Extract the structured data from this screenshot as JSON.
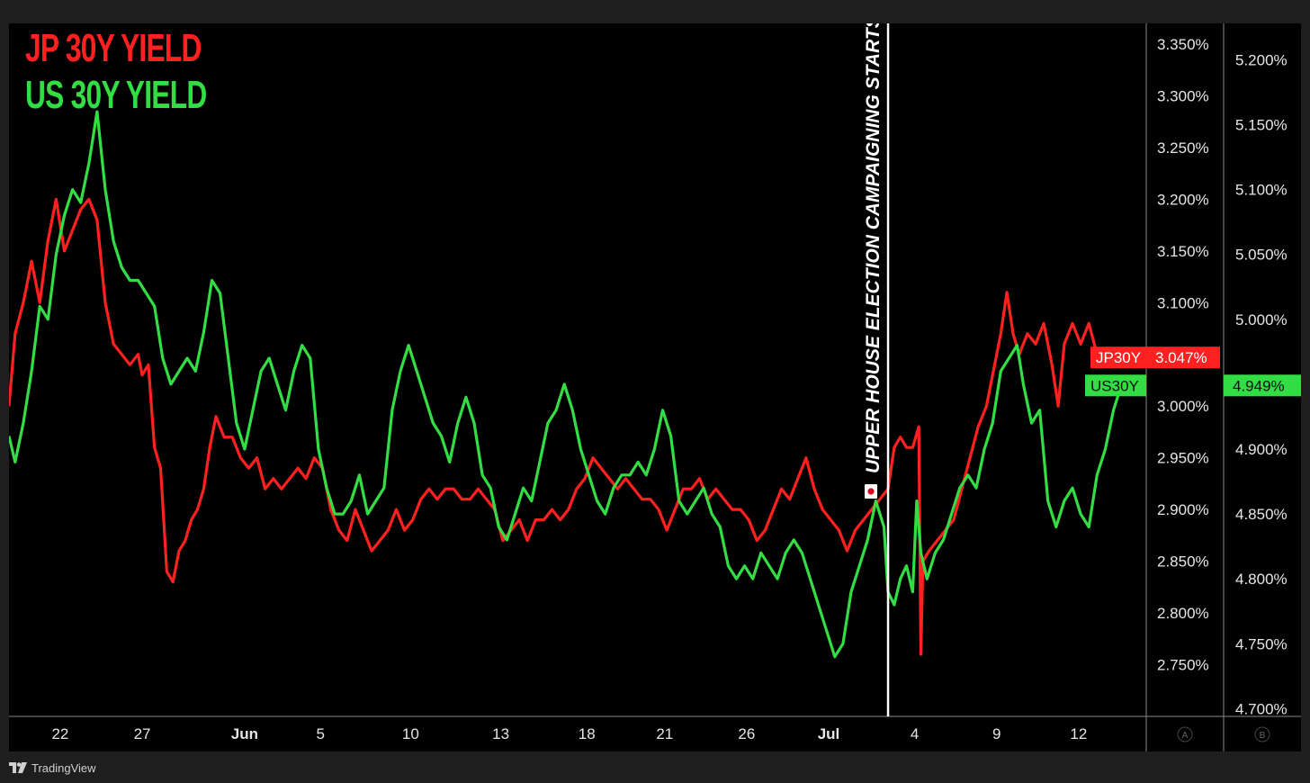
{
  "legend": {
    "jp": {
      "text": "JP 30Y YIELD",
      "color": "#ff2020"
    },
    "us": {
      "text": "US 30Y YIELD",
      "color": "#33dd44"
    }
  },
  "footer": {
    "brand": "TradingView",
    "icon": "tradingview-logo-icon"
  },
  "annotation": {
    "text": "UPPER HOUSE ELECTION CAMPAIGNING STARTS",
    "flag_icon": "japan-flag-icon"
  },
  "axis_buttons": {
    "left": "A",
    "right": "B"
  },
  "chart_data": {
    "type": "line",
    "x_ticks": [
      {
        "label": "22",
        "x": 1.0
      },
      {
        "label": "27",
        "x": 5.0
      },
      {
        "label": "Jun",
        "x": 10.0,
        "bold": true
      },
      {
        "label": "5",
        "x": 13.7
      },
      {
        "label": "10",
        "x": 18.1
      },
      {
        "label": "13",
        "x": 22.5
      },
      {
        "label": "18",
        "x": 26.7
      },
      {
        "label": "21",
        "x": 30.5
      },
      {
        "label": "26",
        "x": 34.5
      },
      {
        "label": "Jul",
        "x": 38.5,
        "bold": true
      },
      {
        "label": "4",
        "x": 42.7
      },
      {
        "label": "9",
        "x": 46.7
      },
      {
        "label": "12",
        "x": 50.7
      }
    ],
    "xlim": [
      -1.5,
      54.0
    ],
    "event_x": 41.4,
    "axes": {
      "jp": {
        "ylim": [
          2.7,
          3.37
        ],
        "ticks": [
          "3.350%",
          "3.300%",
          "3.250%",
          "3.200%",
          "3.150%",
          "3.100%",
          "3.000%",
          "2.950%",
          "2.900%",
          "2.850%",
          "2.800%",
          "2.750%"
        ],
        "tick_values": [
          3.35,
          3.3,
          3.25,
          3.2,
          3.15,
          3.1,
          3.0,
          2.95,
          2.9,
          2.85,
          2.8,
          2.75
        ]
      },
      "us": {
        "ylim": [
          4.694,
          5.228
        ],
        "ticks": [
          "5.200%",
          "5.150%",
          "5.100%",
          "5.050%",
          "5.000%",
          "4.900%",
          "4.850%",
          "4.800%",
          "4.750%",
          "4.700%"
        ],
        "tick_values": [
          5.2,
          5.15,
          5.1,
          5.05,
          5.0,
          4.9,
          4.85,
          4.8,
          4.75,
          4.7
        ]
      }
    },
    "series": [
      {
        "name": "JP30Y",
        "color": "#ff2020",
        "axis": "jp",
        "last_label": "3.047%",
        "last_value": 3.047,
        "points": [
          [
            -1.5,
            3.0
          ],
          [
            -1.2,
            3.07
          ],
          [
            -0.8,
            3.1
          ],
          [
            -0.4,
            3.14
          ],
          [
            0.0,
            3.1
          ],
          [
            0.4,
            3.16
          ],
          [
            0.8,
            3.2
          ],
          [
            1.2,
            3.15
          ],
          [
            1.6,
            3.17
          ],
          [
            2.0,
            3.19
          ],
          [
            2.4,
            3.2
          ],
          [
            2.8,
            3.18
          ],
          [
            3.2,
            3.1
          ],
          [
            3.6,
            3.06
          ],
          [
            4.0,
            3.05
          ],
          [
            4.4,
            3.04
          ],
          [
            4.8,
            3.05
          ],
          [
            5.0,
            3.03
          ],
          [
            5.3,
            3.04
          ],
          [
            5.6,
            2.96
          ],
          [
            5.9,
            2.94
          ],
          [
            6.2,
            2.84
          ],
          [
            6.5,
            2.83
          ],
          [
            6.8,
            2.86
          ],
          [
            7.1,
            2.87
          ],
          [
            7.4,
            2.89
          ],
          [
            7.7,
            2.9
          ],
          [
            8.0,
            2.92
          ],
          [
            8.3,
            2.96
          ],
          [
            8.6,
            2.99
          ],
          [
            9.0,
            2.97
          ],
          [
            9.4,
            2.97
          ],
          [
            9.8,
            2.95
          ],
          [
            10.2,
            2.94
          ],
          [
            10.6,
            2.95
          ],
          [
            11.0,
            2.92
          ],
          [
            11.4,
            2.93
          ],
          [
            11.8,
            2.92
          ],
          [
            12.2,
            2.93
          ],
          [
            12.6,
            2.94
          ],
          [
            13.0,
            2.93
          ],
          [
            13.4,
            2.95
          ],
          [
            13.8,
            2.94
          ],
          [
            14.2,
            2.9
          ],
          [
            14.6,
            2.88
          ],
          [
            15.0,
            2.87
          ],
          [
            15.4,
            2.9
          ],
          [
            15.8,
            2.88
          ],
          [
            16.2,
            2.86
          ],
          [
            16.6,
            2.87
          ],
          [
            17.0,
            2.88
          ],
          [
            17.4,
            2.9
          ],
          [
            17.8,
            2.88
          ],
          [
            18.2,
            2.89
          ],
          [
            18.6,
            2.91
          ],
          [
            19.0,
            2.92
          ],
          [
            19.4,
            2.91
          ],
          [
            19.8,
            2.92
          ],
          [
            20.2,
            2.92
          ],
          [
            20.6,
            2.91
          ],
          [
            21.0,
            2.91
          ],
          [
            21.4,
            2.92
          ],
          [
            21.8,
            2.91
          ],
          [
            22.2,
            2.9
          ],
          [
            22.6,
            2.87
          ],
          [
            23.0,
            2.88
          ],
          [
            23.4,
            2.89
          ],
          [
            23.8,
            2.87
          ],
          [
            24.2,
            2.89
          ],
          [
            24.6,
            2.89
          ],
          [
            25.0,
            2.9
          ],
          [
            25.4,
            2.89
          ],
          [
            25.8,
            2.9
          ],
          [
            26.2,
            2.92
          ],
          [
            26.6,
            2.93
          ],
          [
            27.0,
            2.95
          ],
          [
            27.4,
            2.94
          ],
          [
            27.8,
            2.93
          ],
          [
            28.2,
            2.92
          ],
          [
            28.6,
            2.93
          ],
          [
            29.0,
            2.92
          ],
          [
            29.4,
            2.91
          ],
          [
            29.8,
            2.91
          ],
          [
            30.2,
            2.9
          ],
          [
            30.6,
            2.88
          ],
          [
            31.0,
            2.9
          ],
          [
            31.4,
            2.92
          ],
          [
            31.8,
            2.92
          ],
          [
            32.2,
            2.93
          ],
          [
            32.6,
            2.91
          ],
          [
            33.0,
            2.92
          ],
          [
            33.4,
            2.91
          ],
          [
            33.8,
            2.9
          ],
          [
            34.2,
            2.9
          ],
          [
            34.6,
            2.89
          ],
          [
            35.0,
            2.87
          ],
          [
            35.4,
            2.88
          ],
          [
            35.8,
            2.9
          ],
          [
            36.2,
            2.92
          ],
          [
            36.6,
            2.91
          ],
          [
            37.0,
            2.93
          ],
          [
            37.4,
            2.95
          ],
          [
            37.8,
            2.92
          ],
          [
            38.2,
            2.9
          ],
          [
            38.6,
            2.89
          ],
          [
            39.0,
            2.88
          ],
          [
            39.4,
            2.86
          ],
          [
            39.8,
            2.88
          ],
          [
            40.2,
            2.89
          ],
          [
            40.6,
            2.9
          ],
          [
            41.0,
            2.91
          ],
          [
            41.4,
            2.92
          ],
          [
            41.7,
            2.96
          ],
          [
            42.0,
            2.97
          ],
          [
            42.3,
            2.96
          ],
          [
            42.6,
            2.96
          ],
          [
            42.9,
            2.98
          ],
          [
            43.0,
            2.76
          ],
          [
            43.1,
            2.85
          ],
          [
            43.4,
            2.86
          ],
          [
            43.8,
            2.87
          ],
          [
            44.2,
            2.88
          ],
          [
            44.6,
            2.89
          ],
          [
            45.0,
            2.92
          ],
          [
            45.4,
            2.95
          ],
          [
            45.8,
            2.98
          ],
          [
            46.2,
            3.0
          ],
          [
            46.6,
            3.04
          ],
          [
            46.9,
            3.07
          ],
          [
            47.2,
            3.11
          ],
          [
            47.5,
            3.07
          ],
          [
            47.8,
            3.05
          ],
          [
            48.2,
            3.07
          ],
          [
            48.6,
            3.06
          ],
          [
            49.0,
            3.08
          ],
          [
            49.4,
            3.04
          ],
          [
            49.7,
            3.0
          ],
          [
            50.0,
            3.06
          ],
          [
            50.4,
            3.08
          ],
          [
            50.8,
            3.06
          ],
          [
            51.2,
            3.08
          ],
          [
            51.6,
            3.05
          ],
          [
            52.0,
            3.04
          ],
          [
            52.4,
            3.05
          ],
          [
            52.8,
            3.04
          ],
          [
            53.2,
            3.047
          ]
        ]
      },
      {
        "name": "US30Y",
        "color": "#33dd44",
        "axis": "us",
        "last_label": "4.949%",
        "last_value": 4.949,
        "points": [
          [
            -1.5,
            4.91
          ],
          [
            -1.2,
            4.89
          ],
          [
            -0.8,
            4.92
          ],
          [
            -0.4,
            4.96
          ],
          [
            0.0,
            5.01
          ],
          [
            0.4,
            5.0
          ],
          [
            0.8,
            5.05
          ],
          [
            1.2,
            5.08
          ],
          [
            1.6,
            5.1
          ],
          [
            2.0,
            5.09
          ],
          [
            2.4,
            5.12
          ],
          [
            2.8,
            5.16
          ],
          [
            3.2,
            5.1
          ],
          [
            3.6,
            5.06
          ],
          [
            4.0,
            5.04
          ],
          [
            4.4,
            5.03
          ],
          [
            4.8,
            5.03
          ],
          [
            5.2,
            5.02
          ],
          [
            5.6,
            5.01
          ],
          [
            6.0,
            4.97
          ],
          [
            6.4,
            4.95
          ],
          [
            6.8,
            4.96
          ],
          [
            7.2,
            4.97
          ],
          [
            7.6,
            4.96
          ],
          [
            8.0,
            4.99
          ],
          [
            8.4,
            5.03
          ],
          [
            8.8,
            5.02
          ],
          [
            9.2,
            4.97
          ],
          [
            9.6,
            4.92
          ],
          [
            10.0,
            4.9
          ],
          [
            10.4,
            4.93
          ],
          [
            10.8,
            4.96
          ],
          [
            11.2,
            4.97
          ],
          [
            11.6,
            4.95
          ],
          [
            12.0,
            4.93
          ],
          [
            12.4,
            4.96
          ],
          [
            12.8,
            4.98
          ],
          [
            13.2,
            4.97
          ],
          [
            13.6,
            4.9
          ],
          [
            14.0,
            4.87
          ],
          [
            14.4,
            4.85
          ],
          [
            14.8,
            4.85
          ],
          [
            15.2,
            4.86
          ],
          [
            15.6,
            4.88
          ],
          [
            16.0,
            4.85
          ],
          [
            16.4,
            4.86
          ],
          [
            16.8,
            4.87
          ],
          [
            17.2,
            4.93
          ],
          [
            17.6,
            4.96
          ],
          [
            18.0,
            4.98
          ],
          [
            18.4,
            4.96
          ],
          [
            18.8,
            4.94
          ],
          [
            19.2,
            4.92
          ],
          [
            19.6,
            4.91
          ],
          [
            20.0,
            4.89
          ],
          [
            20.4,
            4.92
          ],
          [
            20.8,
            4.94
          ],
          [
            21.2,
            4.92
          ],
          [
            21.6,
            4.88
          ],
          [
            22.0,
            4.87
          ],
          [
            22.4,
            4.84
          ],
          [
            22.8,
            4.83
          ],
          [
            23.2,
            4.85
          ],
          [
            23.6,
            4.87
          ],
          [
            24.0,
            4.86
          ],
          [
            24.4,
            4.89
          ],
          [
            24.8,
            4.92
          ],
          [
            25.2,
            4.93
          ],
          [
            25.6,
            4.95
          ],
          [
            26.0,
            4.93
          ],
          [
            26.4,
            4.9
          ],
          [
            26.8,
            4.88
          ],
          [
            27.2,
            4.86
          ],
          [
            27.6,
            4.85
          ],
          [
            28.0,
            4.87
          ],
          [
            28.4,
            4.88
          ],
          [
            28.8,
            4.88
          ],
          [
            29.2,
            4.89
          ],
          [
            29.6,
            4.88
          ],
          [
            30.0,
            4.9
          ],
          [
            30.4,
            4.93
          ],
          [
            30.8,
            4.91
          ],
          [
            31.2,
            4.86
          ],
          [
            31.6,
            4.85
          ],
          [
            32.0,
            4.86
          ],
          [
            32.4,
            4.87
          ],
          [
            32.8,
            4.85
          ],
          [
            33.2,
            4.84
          ],
          [
            33.6,
            4.81
          ],
          [
            34.0,
            4.8
          ],
          [
            34.4,
            4.81
          ],
          [
            34.8,
            4.8
          ],
          [
            35.2,
            4.82
          ],
          [
            35.6,
            4.81
          ],
          [
            36.0,
            4.8
          ],
          [
            36.4,
            4.82
          ],
          [
            36.8,
            4.83
          ],
          [
            37.2,
            4.82
          ],
          [
            37.6,
            4.8
          ],
          [
            38.0,
            4.78
          ],
          [
            38.4,
            4.76
          ],
          [
            38.8,
            4.74
          ],
          [
            39.2,
            4.75
          ],
          [
            39.6,
            4.79
          ],
          [
            40.0,
            4.81
          ],
          [
            40.4,
            4.83
          ],
          [
            40.8,
            4.86
          ],
          [
            41.2,
            4.84
          ],
          [
            41.4,
            4.79
          ],
          [
            41.7,
            4.78
          ],
          [
            42.0,
            4.8
          ],
          [
            42.3,
            4.81
          ],
          [
            42.6,
            4.79
          ],
          [
            42.8,
            4.86
          ],
          [
            43.0,
            4.82
          ],
          [
            43.3,
            4.8
          ],
          [
            43.7,
            4.82
          ],
          [
            44.1,
            4.83
          ],
          [
            44.5,
            4.85
          ],
          [
            44.9,
            4.87
          ],
          [
            45.3,
            4.88
          ],
          [
            45.7,
            4.87
          ],
          [
            46.1,
            4.9
          ],
          [
            46.5,
            4.92
          ],
          [
            46.9,
            4.96
          ],
          [
            47.3,
            4.97
          ],
          [
            47.7,
            4.98
          ],
          [
            48.0,
            4.95
          ],
          [
            48.4,
            4.92
          ],
          [
            48.8,
            4.93
          ],
          [
            49.2,
            4.86
          ],
          [
            49.6,
            4.84
          ],
          [
            50.0,
            4.86
          ],
          [
            50.4,
            4.87
          ],
          [
            50.8,
            4.85
          ],
          [
            51.2,
            4.84
          ],
          [
            51.6,
            4.88
          ],
          [
            52.0,
            4.9
          ],
          [
            52.4,
            4.93
          ],
          [
            52.8,
            4.95
          ],
          [
            53.2,
            4.949
          ]
        ]
      }
    ]
  }
}
